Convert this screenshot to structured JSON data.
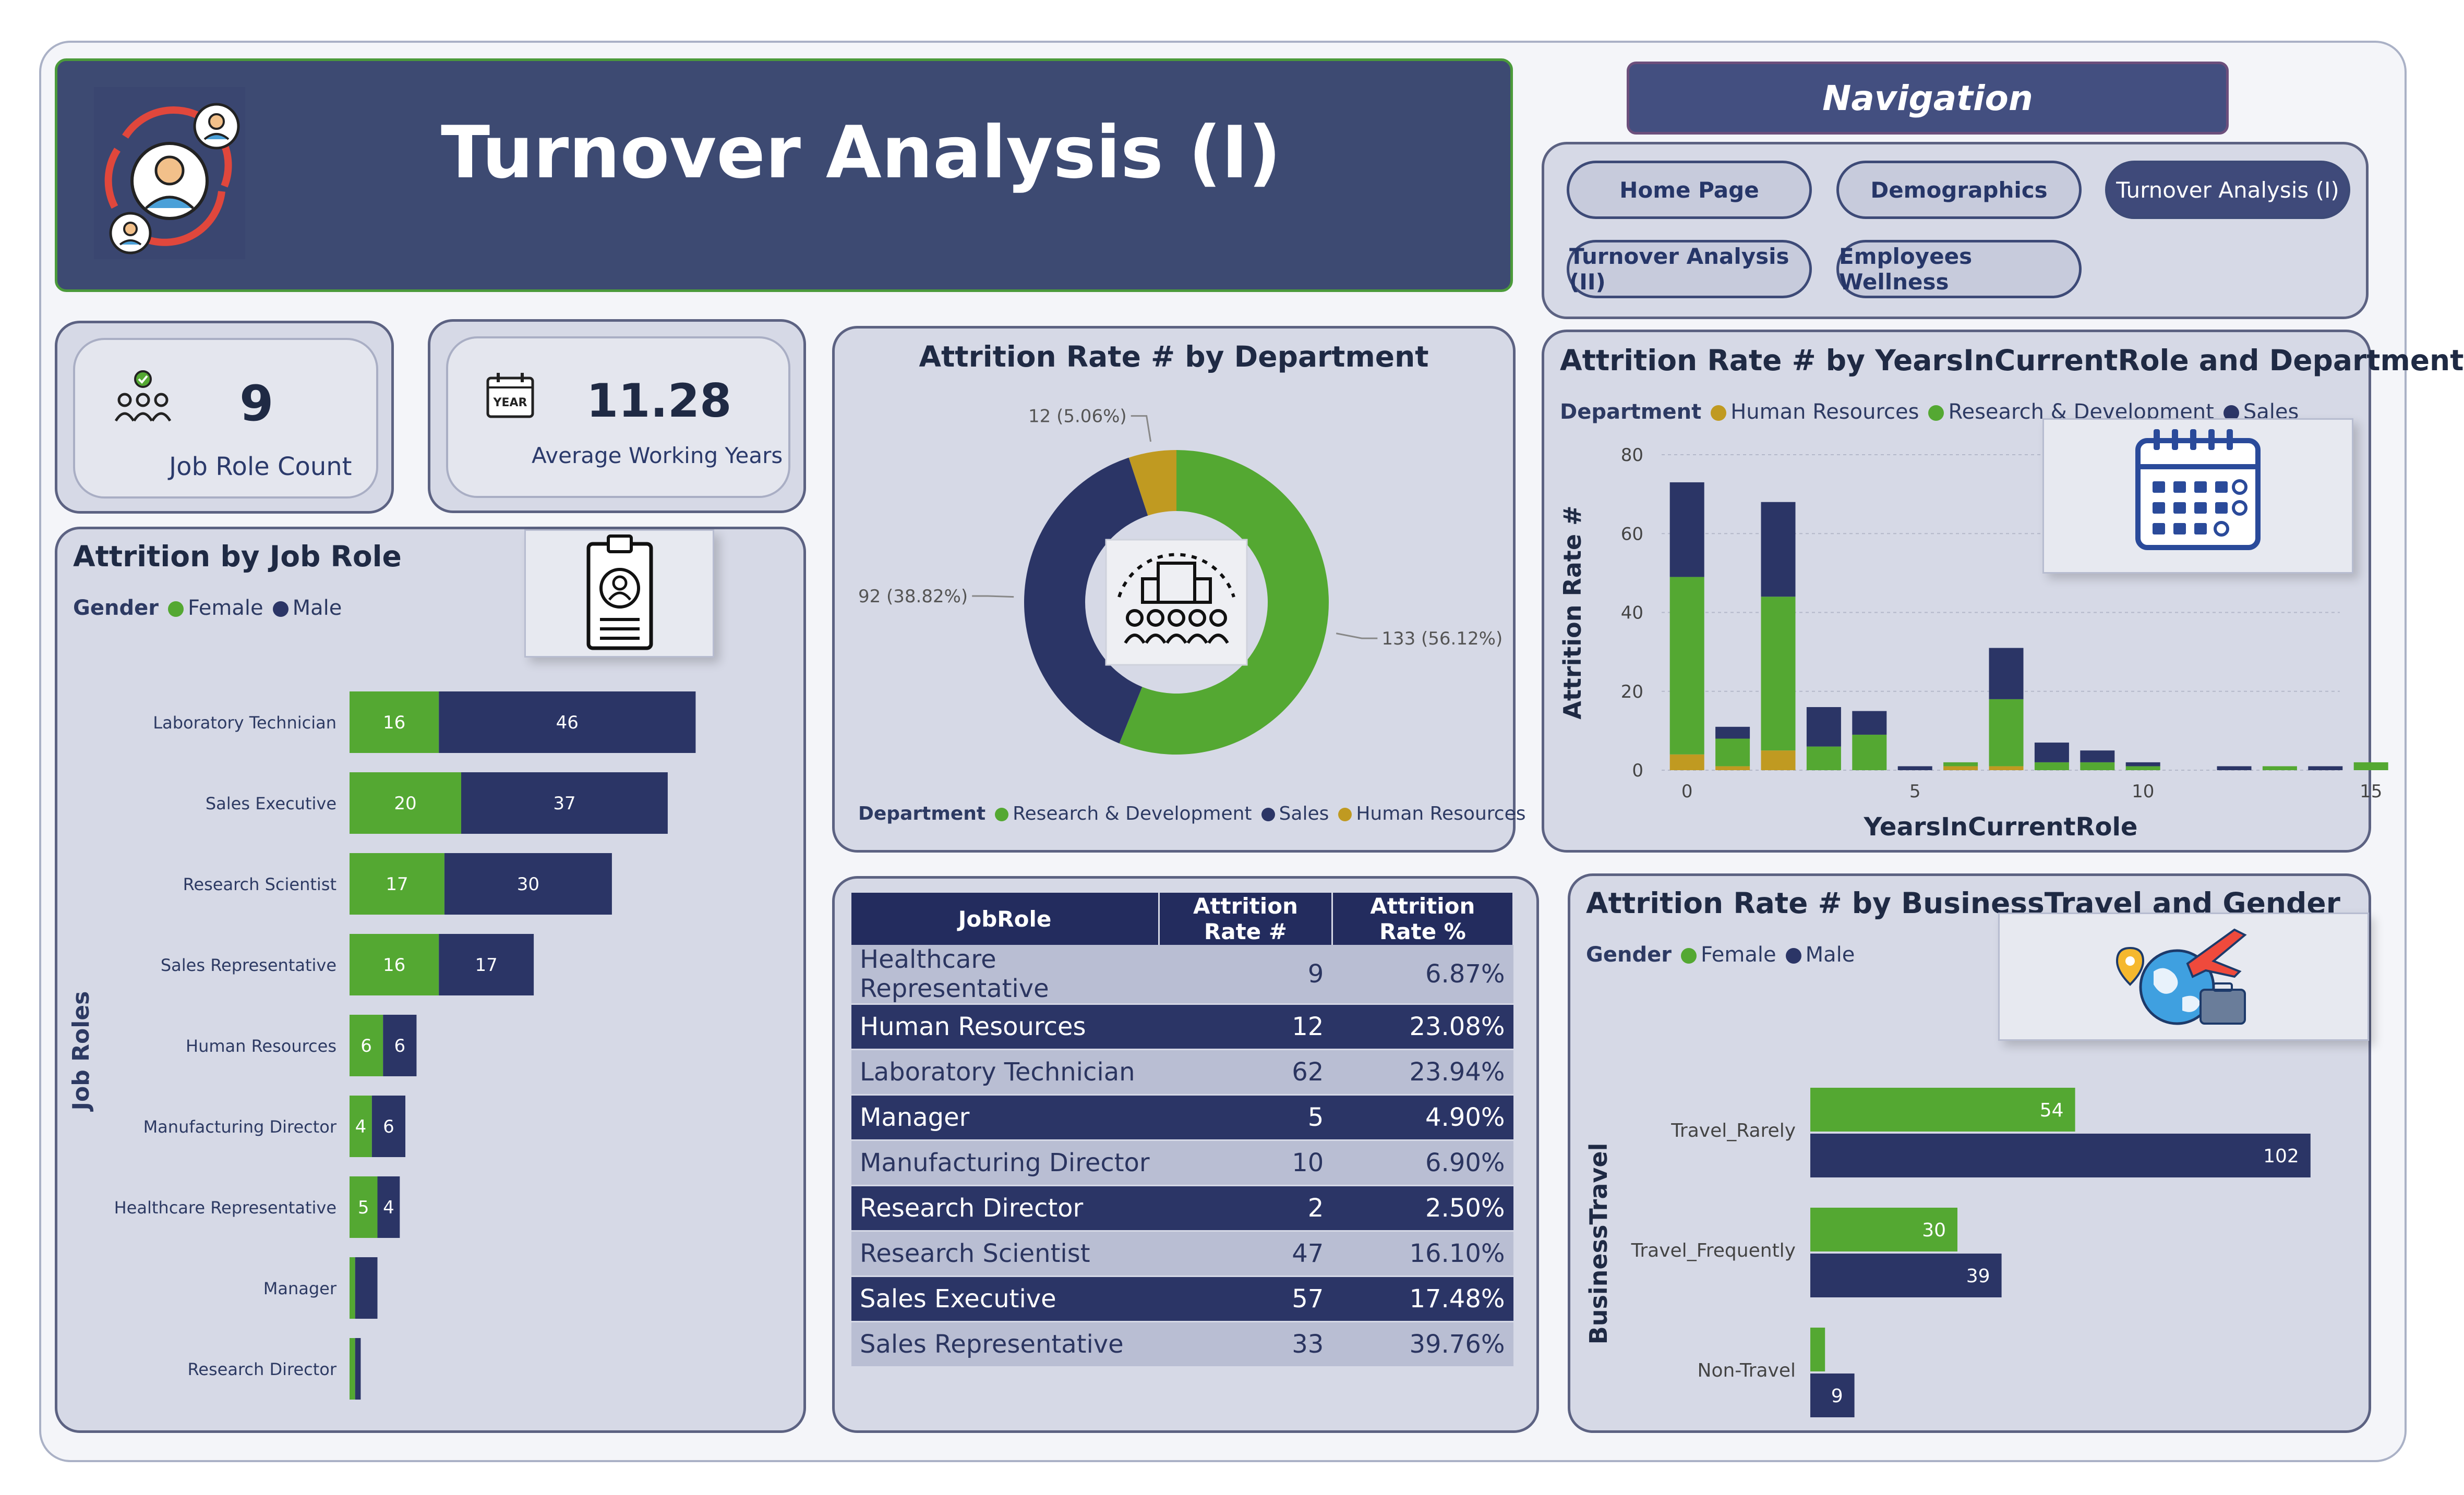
{
  "header": {
    "title": "Turnover Analysis (I)"
  },
  "navigation": {
    "title": "Navigation",
    "buttons": [
      {
        "label": "Home Page",
        "active": false
      },
      {
        "label": "Demographics",
        "active": false
      },
      {
        "label": "Turnover Analysis (I)",
        "active": true
      },
      {
        "label": "Turnover Analysis (II)",
        "active": false
      },
      {
        "label": "Employees Wellness",
        "active": false
      }
    ]
  },
  "kpis": {
    "job_role_count": {
      "value": "9",
      "label": "Job Role Count"
    },
    "avg_working_years": {
      "value": "11.28",
      "label": "Average Working Years",
      "icon_text": "YEAR"
    }
  },
  "colors": {
    "female": "#54a832",
    "male": "#2b3566",
    "research": "#54a832",
    "sales": "#2b3566",
    "hr": "#c09a21"
  },
  "job_role_chart": {
    "title": "Attrition by Job Role",
    "legend_title": "Gender",
    "legend": [
      "Female",
      "Male"
    ],
    "ylabel": "Job Roles"
  },
  "dept_chart": {
    "title": "Attrition Rate # by Department",
    "legend_title": "Department",
    "legend": [
      "Research & Development",
      "Sales",
      "Human Resources"
    ]
  },
  "years_chart": {
    "title": "Attrition Rate # by YearsInCurrentRole and Department",
    "legend_title": "Department",
    "legend": [
      "Human Resources",
      "Research & Development",
      "Sales"
    ]
  },
  "travel_chart": {
    "title": "Attrition Rate # by BusinessTravel and Gender",
    "legend_title": "Gender",
    "legend": [
      "Female",
      "Male"
    ]
  },
  "table": {
    "headers": [
      "JobRole",
      "Attrition Rate #",
      "Attrition Rate %"
    ],
    "rows": [
      [
        "Healthcare Representative",
        "9",
        "6.87%"
      ],
      [
        "Human Resources",
        "12",
        "23.08%"
      ],
      [
        "Laboratory Technician",
        "62",
        "23.94%"
      ],
      [
        "Manager",
        "5",
        "4.90%"
      ],
      [
        "Manufacturing Director",
        "10",
        "6.90%"
      ],
      [
        "Research Director",
        "2",
        "2.50%"
      ],
      [
        "Research Scientist",
        "47",
        "16.10%"
      ],
      [
        "Sales Executive",
        "57",
        "17.48%"
      ],
      [
        "Sales Representative",
        "33",
        "39.76%"
      ]
    ]
  },
  "chart_data": [
    {
      "type": "bar",
      "orientation": "horizontal",
      "stacked": true,
      "title": "Attrition by Job Role",
      "ylabel": "Job Roles",
      "categories": [
        "Laboratory Technician",
        "Sales Executive",
        "Research Scientist",
        "Sales Representative",
        "Human Resources",
        "Manufacturing Director",
        "Healthcare Representative",
        "Manager",
        "Research Director"
      ],
      "series": [
        {
          "name": "Female",
          "values": [
            16,
            20,
            17,
            16,
            6,
            4,
            5,
            1,
            1
          ]
        },
        {
          "name": "Male",
          "values": [
            46,
            37,
            30,
            17,
            6,
            6,
            4,
            4,
            1
          ]
        }
      ],
      "data_labels_shown": [
        [
          16,
          20,
          17,
          16,
          6,
          4,
          5,
          null,
          null
        ],
        [
          46,
          37,
          30,
          17,
          6,
          6,
          4,
          null,
          null
        ]
      ],
      "legend_position": "top-left"
    },
    {
      "type": "pie",
      "donut": true,
      "title": "Attrition Rate # by Department",
      "categories": [
        "Research & Development",
        "Sales",
        "Human Resources"
      ],
      "values": [
        133,
        92,
        12
      ],
      "labels": [
        "133 (56.12%)",
        "92 (38.82%)",
        "12 (5.06%)"
      ],
      "legend_position": "bottom"
    },
    {
      "type": "bar",
      "stacked": true,
      "title": "Attrition Rate # by YearsInCurrentRole and Department",
      "xlabel": "YearsInCurrentRole",
      "ylabel": "Attrition Rate #",
      "x": [
        0,
        1,
        2,
        3,
        4,
        5,
        6,
        7,
        8,
        9,
        10,
        11,
        12,
        13,
        14,
        15
      ],
      "series": [
        {
          "name": "Human Resources",
          "values": [
            4,
            1,
            5,
            0,
            0,
            0,
            1,
            1,
            0,
            0,
            0,
            0,
            0,
            0,
            0,
            0
          ]
        },
        {
          "name": "Research & Development",
          "values": [
            45,
            7,
            39,
            6,
            9,
            0,
            1,
            17,
            2,
            2,
            1,
            0,
            0,
            1,
            0,
            2
          ]
        },
        {
          "name": "Sales",
          "values": [
            24,
            3,
            24,
            10,
            6,
            1,
            0,
            13,
            5,
            3,
            1,
            0,
            1,
            0,
            1,
            0
          ]
        }
      ],
      "xticks": [
        0,
        5,
        10,
        15
      ],
      "yticks": [
        0,
        20,
        40,
        60,
        80
      ],
      "ylim": [
        0,
        80
      ],
      "grid": true,
      "legend_position": "top-left"
    },
    {
      "type": "bar",
      "orientation": "horizontal",
      "title": "Attrition Rate # by BusinessTravel and Gender",
      "ylabel": "BusinessTravel",
      "categories": [
        "Travel_Rarely",
        "Travel_Frequently",
        "Non-Travel"
      ],
      "series": [
        {
          "name": "Female",
          "values": [
            54,
            30,
            3
          ]
        },
        {
          "name": "Male",
          "values": [
            102,
            39,
            9
          ]
        }
      ],
      "data_labels_shown": [
        [
          54,
          30,
          null
        ],
        [
          102,
          39,
          9
        ]
      ],
      "legend_position": "top-left"
    }
  ]
}
